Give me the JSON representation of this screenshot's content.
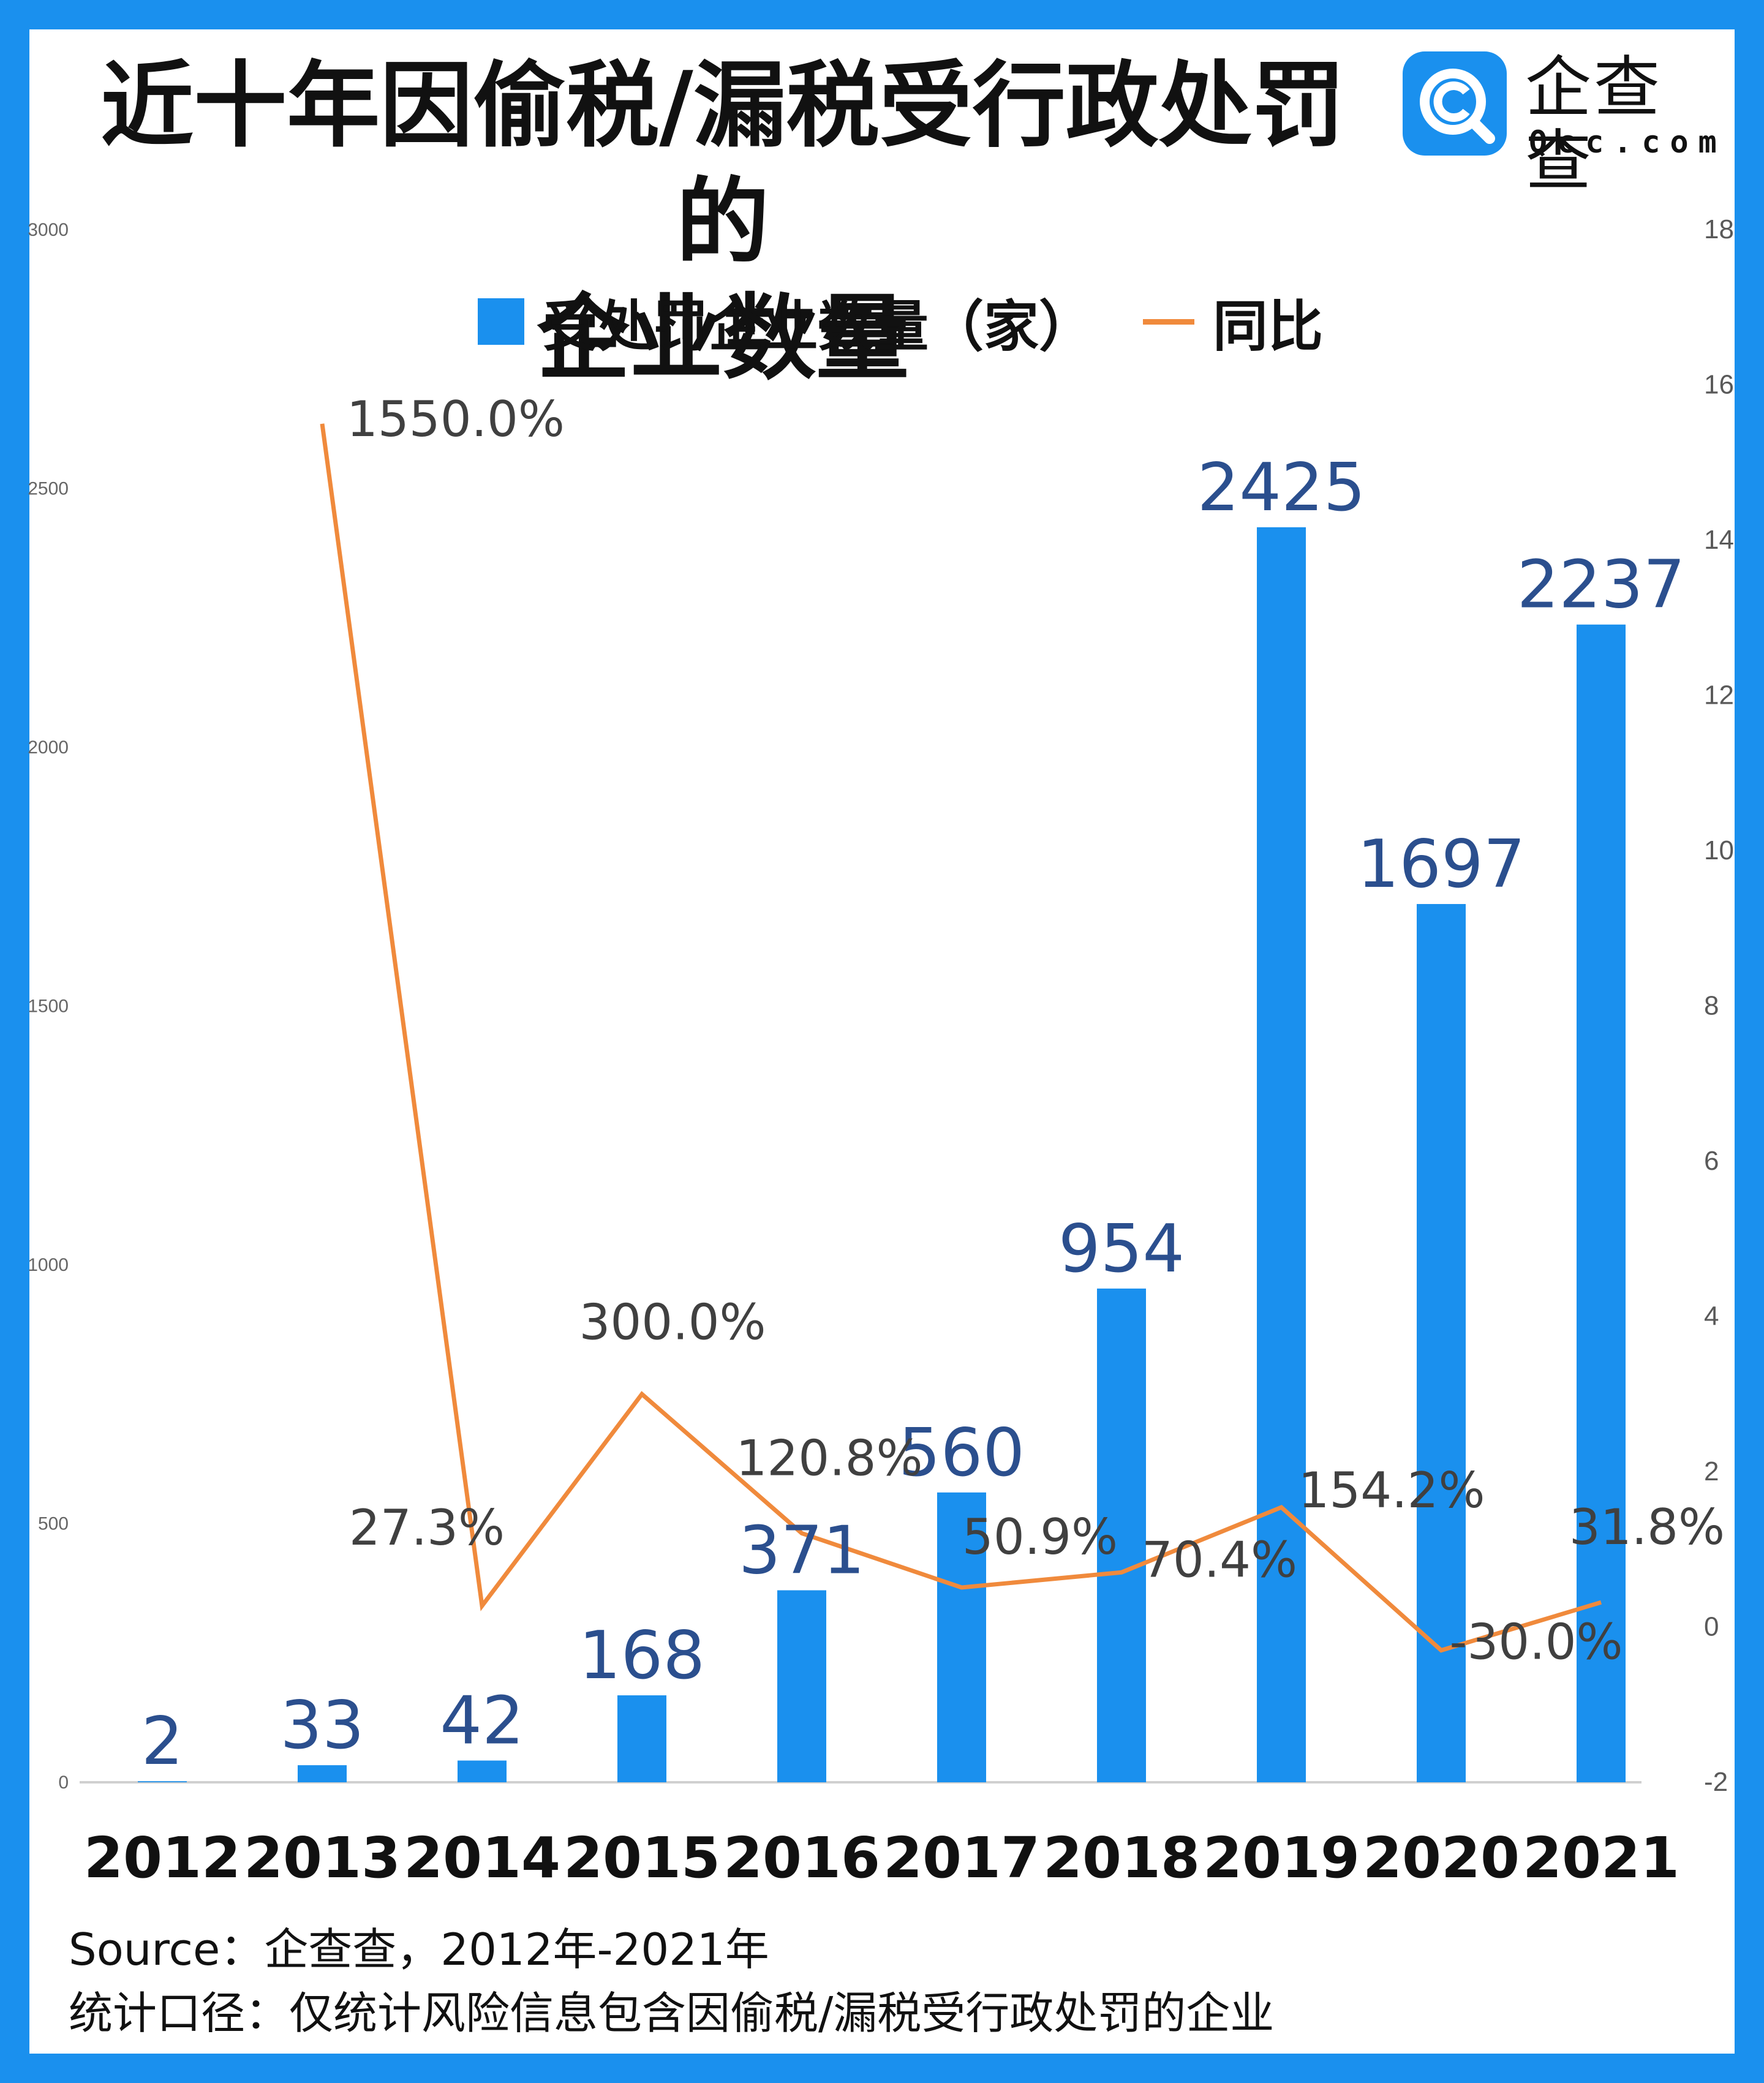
{
  "title_lines": [
    "近十年因偷税/漏税受行政处罚的",
    "企业数量"
  ],
  "logo": {
    "cn": "企查查",
    "en": "Qcc.com",
    "mark": "magnifier-c-icon"
  },
  "legend": {
    "bar_label": "受处罚企业数量（家）",
    "line_label": "同比"
  },
  "footer": {
    "source": "Source：企查查，2012年-2021年",
    "scope": "统计口径：仅统计风险信息包含因偷税/漏税受行政处罚的企业"
  },
  "colors": {
    "bar": "#1a90ee",
    "line": "#f08a3c",
    "bar_label": "#2b4f8e",
    "line_label": "#404040",
    "frame": "#1a90ee"
  },
  "chart_data": {
    "type": "bar",
    "categories": [
      "2012",
      "2013",
      "2014",
      "2015",
      "2016",
      "2017",
      "2018",
      "2019",
      "2020",
      "2021"
    ],
    "series": [
      {
        "name": "受处罚企业数量（家）",
        "type": "bar",
        "axis": "left",
        "values": [
          2,
          33,
          42,
          168,
          371,
          560,
          954,
          2425,
          1697,
          2237
        ],
        "labels": [
          "2",
          "33",
          "42",
          "168",
          "371",
          "560",
          "954",
          "2425",
          "1697",
          "2237"
        ]
      },
      {
        "name": "同比",
        "type": "line",
        "axis": "right",
        "values": [
          null,
          15.5,
          0.273,
          3.0,
          1.208,
          0.509,
          0.704,
          1.542,
          -0.3,
          0.318
        ],
        "labels": [
          "",
          "1550.0%",
          "27.3%",
          "300.0%",
          "120.8%",
          "50.9%",
          "70.4%",
          "154.2%",
          "-30.0%",
          "31.8%"
        ]
      }
    ],
    "y_left": {
      "min": 0,
      "max": 3000,
      "ticks": [
        "0",
        "500",
        "1000",
        "1500",
        "2000",
        "2500",
        "3000"
      ]
    },
    "y_right": {
      "min": -2,
      "max": 18,
      "ticks": [
        "-2",
        "0",
        "2",
        "4",
        "6",
        "8",
        "10",
        "12",
        "14",
        "16",
        "18"
      ]
    },
    "grid": false,
    "legend_position": "top"
  }
}
